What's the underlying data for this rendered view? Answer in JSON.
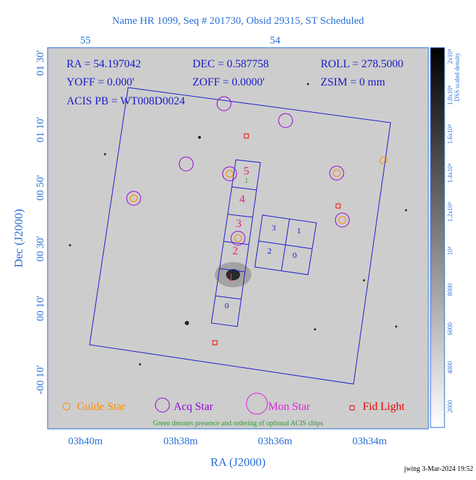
{
  "header": {
    "title": "Name HR 1099, Seq # 201730, Obsid 29315, ST Scheduled"
  },
  "top_axis": {
    "ticks": [
      "55",
      "54"
    ]
  },
  "left_axis": {
    "label": "Dec (J2000)",
    "ticks": [
      "01 30'",
      "01 10'",
      "00 50'",
      "00 30'",
      "00 10'",
      "-00 10'"
    ]
  },
  "bottom_axis": {
    "label": "RA (J2000)",
    "ticks": [
      "03h40m",
      "03h38m",
      "03h36m",
      "03h34m"
    ]
  },
  "info": {
    "ra": "RA = 54.197042",
    "dec": "DEC = 0.587758",
    "roll": "ROLL = 278.5000",
    "yoff": "YOFF = 0.000'",
    "zoff": "ZOFF = 0.0000'",
    "zsim": "ZSIM = 0 mm",
    "acis": "ACIS PB = WT008D0024"
  },
  "chips": {
    "s": [
      "5",
      "4",
      "3",
      "2",
      "1",
      "0"
    ],
    "optional": "1",
    "i": [
      "3",
      "1",
      "2",
      "0"
    ]
  },
  "legend": {
    "items": [
      "Guide Star",
      "Acq Star",
      "Mon Star",
      "Fid Light"
    ],
    "note": "Green denotes presence and ordering of optional ACIS chips"
  },
  "colorbar": {
    "label": "DSS scaled density",
    "ticks": [
      "2000",
      "4000",
      "6000",
      "8000",
      "10⁴",
      "1.2x10⁴",
      "1.4x10⁴",
      "1.6x10⁴",
      "1.8x10⁴",
      "2x10⁴"
    ]
  },
  "footer": "jwing  3-Mar-2024 19:52"
}
